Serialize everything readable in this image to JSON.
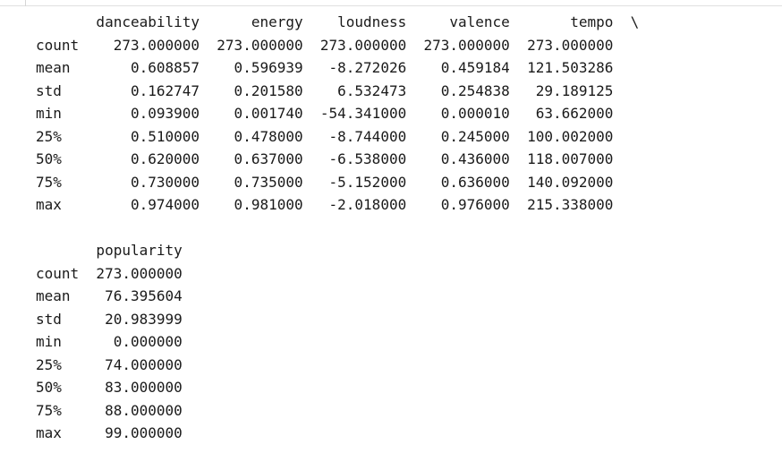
{
  "output": {
    "lines": [
      "       danceability      energy    loudness     valence       tempo  \\",
      "count    273.000000  273.000000  273.000000  273.000000  273.000000  ",
      "mean       0.608857    0.596939   -8.272026    0.459184  121.503286  ",
      "std        0.162747    0.201580    6.532473    0.254838   29.189125  ",
      "min        0.093900    0.001740  -54.341000    0.000010   63.662000  ",
      "25%        0.510000    0.478000   -8.744000    0.245000  100.002000  ",
      "50%        0.620000    0.637000   -6.538000    0.436000  118.007000  ",
      "75%        0.730000    0.735000   -5.152000    0.636000  140.092000  ",
      "max        0.974000    0.981000   -2.018000    0.976000  215.338000  ",
      "",
      "       popularity  ",
      "count  273.000000  ",
      "mean    76.395604  ",
      "std     20.983999  ",
      "min      0.000000  ",
      "25%     74.000000  ",
      "50%     83.000000  ",
      "75%     88.000000  ",
      "max     99.000000  "
    ]
  }
}
